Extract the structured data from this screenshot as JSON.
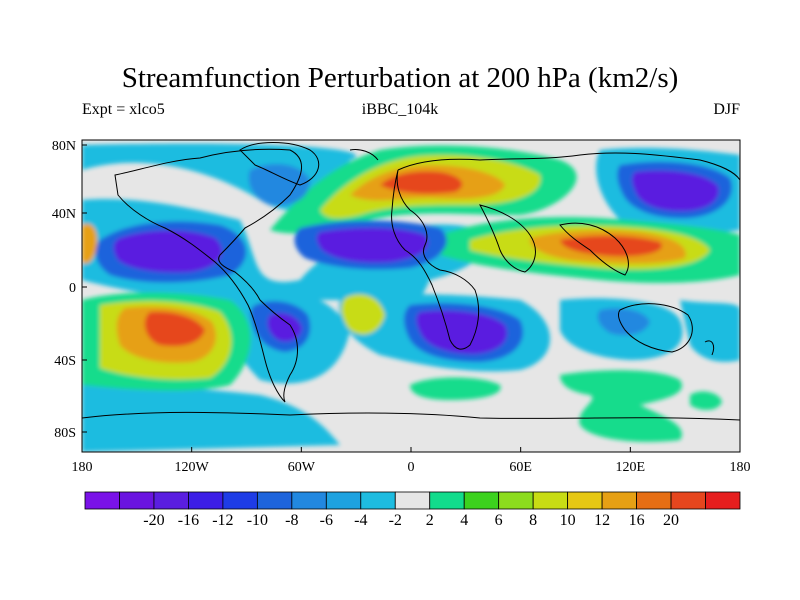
{
  "title": "Streamfunction Perturbation at 200 hPa (km2/s)",
  "left_string": "Expt = xlco5",
  "center_string": "iBBC_104k",
  "right_string": "DJF",
  "x_ticks": [
    "180",
    "120W",
    "60W",
    "0",
    "60E",
    "120E",
    "180"
  ],
  "y_ticks": [
    "80N",
    "40N",
    "0",
    "40S",
    "80S"
  ],
  "colorbar": {
    "colors": [
      "#7a12e8",
      "#6a14e0",
      "#5a1ee0",
      "#3c1ee6",
      "#1e3ce6",
      "#1e64dc",
      "#2288e0",
      "#1ea2e0",
      "#1ebce0",
      "#e6e6e6",
      "#12dc8c",
      "#3cd21e",
      "#8cdc1e",
      "#c8dc14",
      "#e6c814",
      "#e6a014",
      "#e66e14",
      "#e6461e",
      "#e61e1e"
    ],
    "labels": [
      "-20",
      "-16",
      "-12",
      "-10",
      "-8",
      "-6",
      "-4",
      "-2",
      "2",
      "4",
      "6",
      "8",
      "10",
      "12",
      "16",
      "20"
    ]
  }
}
